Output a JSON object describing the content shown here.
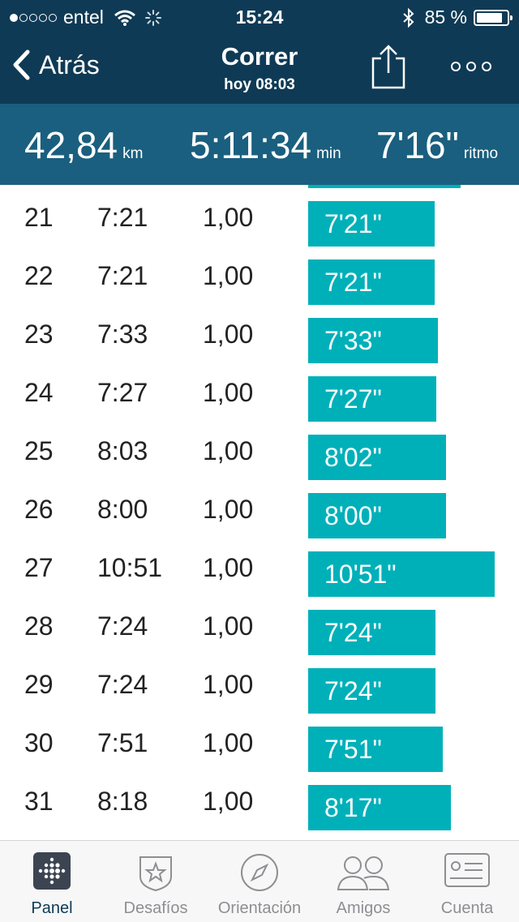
{
  "status_bar": {
    "carrier": "entel",
    "time": "15:24",
    "battery": "85 %",
    "battery_level": 0.85,
    "signal_bars_filled": 1,
    "signal_bars_total": 5
  },
  "nav": {
    "back_label": "Atrás",
    "title": "Correr",
    "subtitle": "hoy 08:03",
    "share_icon": "share-icon",
    "more_icon": "more-icon"
  },
  "summary": {
    "distance": {
      "value": "42,84",
      "unit": "km"
    },
    "duration": {
      "value": "5:11:34",
      "unit": "min"
    },
    "pace": {
      "value": "7'16\"",
      "unit": "ritmo"
    }
  },
  "splits": [
    {
      "km": "21",
      "time": "7:21",
      "dist": "1,00",
      "pace": "7'21\"",
      "pace_min": 7.35
    },
    {
      "km": "22",
      "time": "7:21",
      "dist": "1,00",
      "pace": "7'21\"",
      "pace_min": 7.35
    },
    {
      "km": "23",
      "time": "7:33",
      "dist": "1,00",
      "pace": "7'33\"",
      "pace_min": 7.55
    },
    {
      "km": "24",
      "time": "7:27",
      "dist": "1,00",
      "pace": "7'27\"",
      "pace_min": 7.45
    },
    {
      "km": "25",
      "time": "8:03",
      "dist": "1,00",
      "pace": "8'02\"",
      "pace_min": 8.03
    },
    {
      "km": "26",
      "time": "8:00",
      "dist": "1,00",
      "pace": "8'00\"",
      "pace_min": 8.0
    },
    {
      "km": "27",
      "time": "10:51",
      "dist": "1,00",
      "pace": "10'51\"",
      "pace_min": 10.85
    },
    {
      "km": "28",
      "time": "7:24",
      "dist": "1,00",
      "pace": "7'24\"",
      "pace_min": 7.4
    },
    {
      "km": "29",
      "time": "7:24",
      "dist": "1,00",
      "pace": "7'24\"",
      "pace_min": 7.4
    },
    {
      "km": "30",
      "time": "7:51",
      "dist": "1,00",
      "pace": "7'51\"",
      "pace_min": 7.85
    },
    {
      "km": "31",
      "time": "8:18",
      "dist": "1,00",
      "pace": "8'17\"",
      "pace_min": 8.28
    }
  ],
  "tabs": [
    {
      "label": "Panel",
      "icon": "fitbit-logo-icon",
      "active": true
    },
    {
      "label": "Desafíos",
      "icon": "star-badge-icon",
      "active": false
    },
    {
      "label": "Orientación",
      "icon": "compass-icon",
      "active": false
    },
    {
      "label": "Amigos",
      "icon": "friends-icon",
      "active": false
    },
    {
      "label": "Cuenta",
      "icon": "account-card-icon",
      "active": false
    }
  ],
  "colors": {
    "header": "#0f3a55",
    "summary": "#1a5f7f",
    "bar": "#00b0b9",
    "tab_inactive": "#8e8e93"
  }
}
